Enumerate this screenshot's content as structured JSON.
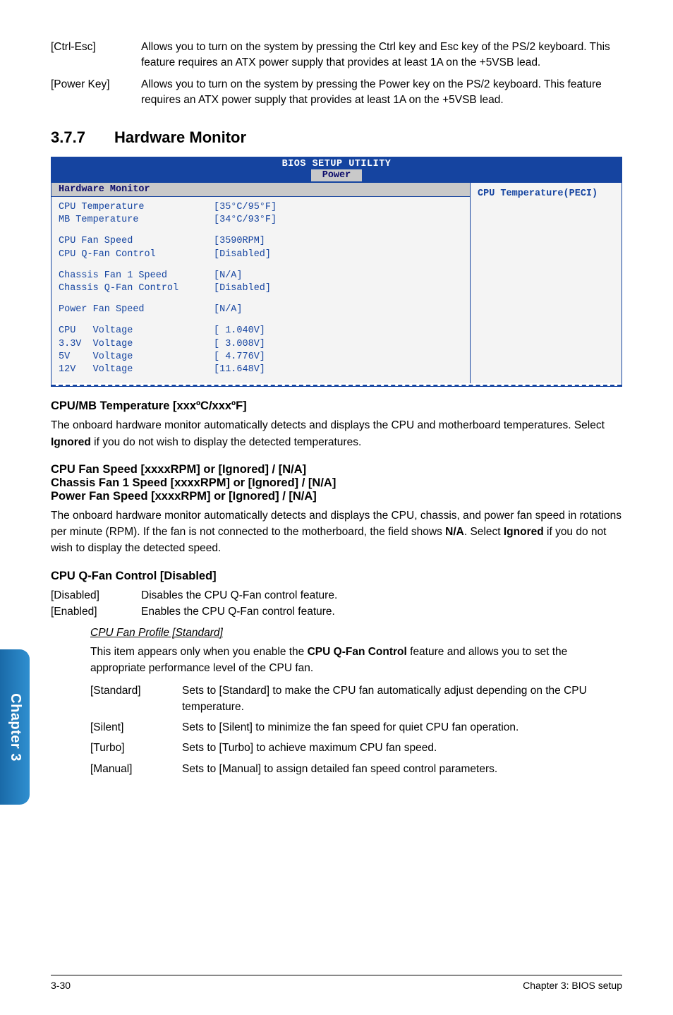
{
  "colors": {
    "bios_header_bg": "#1544a0",
    "bios_text": "#1544a0",
    "bios_tab_bg": "#c9c9c9",
    "bios_body_bg": "#f4f4f4",
    "sidebar_grad_from": "#1a6aa8",
    "sidebar_grad_to": "#2f8fd0",
    "page_bg": "#ffffff"
  },
  "top": {
    "item1_key": "[Ctrl-Esc]",
    "item1_val": "Allows you to turn on the system by pressing the Ctrl key and Esc key of the PS/2 keyboard. This feature requires an ATX power supply that provides at least 1A on the +5VSB lead.",
    "item2_key": "[Power Key]",
    "item2_val": "Allows you to turn on the system by pressing the Power key on the PS/2 keyboard. This feature requires an ATX power supply that provides at least 1A on the +5VSB lead."
  },
  "section": {
    "num": "3.7.7",
    "title": "Hardware Monitor"
  },
  "bios": {
    "title": "BIOS SETUP UTILITY",
    "tab": "Power",
    "section_head": "Hardware Monitor",
    "right_text": "CPU Temperature(PECI)",
    "rows": [
      {
        "l": "CPU Temperature",
        "v": "[35°C/95°F]"
      },
      {
        "l": "MB Temperature",
        "v": "[34°C/93°F]"
      },
      {
        "gap": true
      },
      {
        "l": "CPU Fan Speed",
        "v": "[3590RPM]"
      },
      {
        "l": "CPU Q-Fan Control",
        "v": "[Disabled]"
      },
      {
        "gap": true
      },
      {
        "l": "Chassis Fan 1 Speed",
        "v": "[N/A]"
      },
      {
        "l": "Chassis Q-Fan Control",
        "v": "[Disabled]"
      },
      {
        "gap": true
      },
      {
        "l": "Power Fan Speed",
        "v": "[N/A]"
      },
      {
        "gap": true
      },
      {
        "l": "CPU   Voltage",
        "v": "[ 1.040V]"
      },
      {
        "l": "3.3V  Voltage",
        "v": "[ 3.008V]"
      },
      {
        "l": "5V    Voltage",
        "v": "[ 4.776V]"
      },
      {
        "l": "12V   Voltage",
        "v": "[11.648V]"
      }
    ]
  },
  "sub1": {
    "title": "CPU/MB Temperature [xxxºC/xxxºF]",
    "para_a": "The onboard hardware monitor automatically detects and displays the CPU and motherboard temperatures. Select ",
    "para_bold": "Ignored",
    "para_b": " if you do not wish to display the detected temperatures."
  },
  "sub2": {
    "l1": "CPU Fan Speed [xxxxRPM] or [Ignored] / [N/A]",
    "l2": "Chassis Fan 1 Speed [xxxxRPM] or [Ignored] / [N/A]",
    "l3": "Power Fan Speed [xxxxRPM] or [Ignored] / [N/A]",
    "para_a": "The onboard hardware monitor automatically detects and displays the CPU, chassis, and power fan speed in rotations per minute (RPM). If the fan is not connected to the motherboard, the field shows ",
    "para_b1": "N/A",
    "para_mid": ". Select ",
    "para_b2": "Ignored",
    "para_c": " if you do not wish to display the detected speed."
  },
  "sub3": {
    "title": "CPU Q-Fan Control [Disabled]",
    "d1k": "[Disabled]",
    "d1v": "Disables the CPU Q-Fan control feature.",
    "d2k": "[Enabled]",
    "d2v": "Enables the CPU Q-Fan control feature.",
    "profile_title": "CPU Fan Profile [Standard]",
    "profile_p_a": "This item appears only when you enable the ",
    "profile_p_bold": "CPU Q-Fan Control",
    "profile_p_b": " feature and allows you to set the appropriate performance level of the CPU fan.",
    "opts": {
      "o1k": "[Standard]",
      "o1v": "Sets to [Standard] to make the CPU fan automatically adjust depending on the CPU temperature.",
      "o2k": "[Silent]",
      "o2v": "Sets to [Silent] to minimize the fan speed for quiet CPU fan operation.",
      "o3k": "[Turbo]",
      "o3v": "Sets to [Turbo] to achieve maximum CPU fan speed.",
      "o4k": "[Manual]",
      "o4v": "Sets to [Manual] to assign detailed fan speed control parameters."
    }
  },
  "sidebar": "Chapter 3",
  "footer": {
    "left": "3-30",
    "right": "Chapter 3: BIOS setup"
  }
}
